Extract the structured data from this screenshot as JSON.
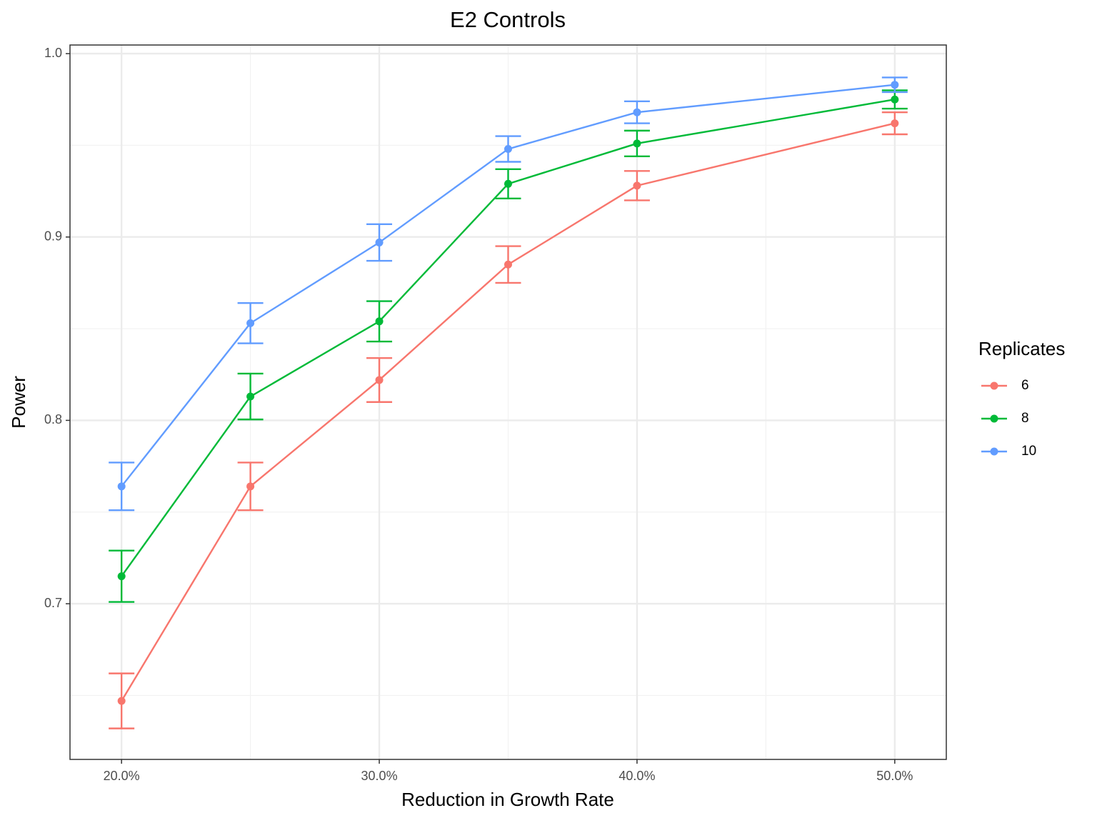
{
  "chart_data": {
    "type": "line",
    "title": "E2 Controls",
    "x_label": "Reduction in Growth Rate",
    "y_label": "Power",
    "x": [
      20,
      25,
      30,
      35,
      40,
      50
    ],
    "xlim": [
      18,
      52
    ],
    "xticks": [
      {
        "value": 20,
        "label": "20.0%"
      },
      {
        "value": 30,
        "label": "30.0%"
      },
      {
        "value": 40,
        "label": "40.0%"
      },
      {
        "value": 50,
        "label": "50.0%"
      }
    ],
    "xminorticks": [
      25,
      35,
      45
    ],
    "ylim": [
      0.6151,
      1.0047
    ],
    "yticks": [
      0.7,
      0.8,
      0.9,
      {
        "value": 1,
        "label": "1.0"
      }
    ],
    "yminorticks": [
      0.65,
      0.75,
      0.85,
      0.95
    ],
    "grid": true,
    "legend": {
      "title": "Replicates",
      "position": "right"
    },
    "series": [
      {
        "name": "6",
        "color": "#f8766d",
        "values": [
          0.647,
          0.764,
          0.822,
          0.885,
          0.928,
          0.962
        ],
        "errors": [
          0.015,
          0.013,
          0.012,
          0.01,
          0.008,
          0.006
        ]
      },
      {
        "name": "8",
        "color": "#00ba38",
        "values": [
          0.715,
          0.813,
          0.854,
          0.929,
          0.951,
          0.975
        ],
        "errors": [
          0.014,
          0.0125,
          0.011,
          0.008,
          0.007,
          0.005
        ]
      },
      {
        "name": "10",
        "color": "#619cff",
        "values": [
          0.764,
          0.853,
          0.897,
          0.948,
          0.968,
          0.983
        ],
        "errors": [
          0.013,
          0.011,
          0.01,
          0.007,
          0.006,
          0.004
        ]
      }
    ]
  }
}
